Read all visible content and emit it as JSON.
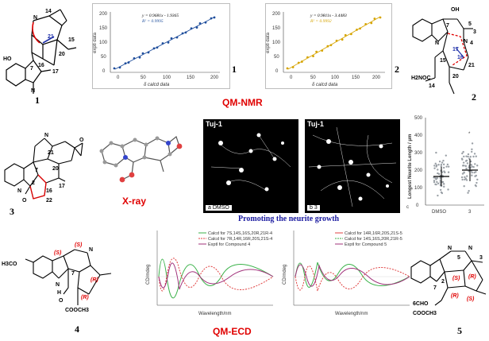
{
  "labels": {
    "qm_nmr": "QM-NMR",
    "xray": "X-ray",
    "qm_ecd": "QM-ECD",
    "promoting": "Promoting the neurite growth"
  },
  "compounds": {
    "c1": "1",
    "c2": "2",
    "c3": "3",
    "c4": "4",
    "c5": "5"
  },
  "atoms": {
    "c1": [
      "14",
      "15",
      "21",
      "20",
      "17",
      "16",
      "7",
      "HO",
      "N",
      "N"
    ],
    "c2": [
      "OH",
      "7",
      "5",
      "N",
      "N",
      "3",
      "4",
      "17",
      "16",
      "15",
      "21",
      "20",
      "14",
      "H2NOC"
    ],
    "c3": [
      "N",
      "21",
      "20",
      "17",
      "7",
      "2",
      "16",
      "22",
      "O",
      "O",
      "N"
    ],
    "c4": [
      "H3CO",
      "(S)",
      "(S)",
      "7",
      "(R)",
      "(R)",
      "N",
      "N",
      "O",
      "H",
      "COOCH3"
    ],
    "c5": [
      "N",
      "N",
      "5",
      "3",
      "7",
      "2",
      "(S)",
      "(S)",
      "(R)",
      "(R)",
      "6CHO",
      "COOCH3"
    ]
  },
  "nmr_plot_1": {
    "eq1": "y = 0.9681x - 1.9365",
    "eq2": "R² = 0.9995",
    "xlabel": "δ calcd data",
    "ylabel": "exptl data",
    "xticks": [
      "0",
      "50",
      "100",
      "150",
      "200"
    ],
    "yticks": [
      "0",
      "50",
      "100",
      "150",
      "200"
    ],
    "label": "1",
    "color": "#1f4e9c"
  },
  "nmr_plot_2": {
    "eq1": "y = 0.9811x - 3.4483",
    "eq2": "R² = 0.9992",
    "xlabel": "δ calcd data",
    "ylabel": "exptl data",
    "xticks": [
      "0",
      "50",
      "100",
      "150",
      "200"
    ],
    "yticks": [
      "0",
      "50",
      "100",
      "150",
      "200"
    ],
    "label": "2",
    "color": "#d6a400"
  },
  "micro": {
    "left_title": "Tuj-1",
    "left_foot": "a  DMSO",
    "right_title": "Tuj-1",
    "right_foot": "b  3"
  },
  "scatter": {
    "ylabel": "Longest Neurite Length / μm",
    "ymax_tick": "500",
    "yticks": [
      "0",
      "100",
      "200",
      "300",
      "400",
      "500"
    ],
    "xcats": [
      "DMSO",
      "3"
    ],
    "panel": "c",
    "star": "*"
  },
  "ecd1": {
    "legend": [
      "Calcd for 7S,14S,16S,20R,21R-4",
      "Calcd for 7R,14R,16R,20S,21S-4",
      "Exptl for Compound 4"
    ],
    "xlabel": "Wavelength/nm",
    "ylabel": "CD/mdeg"
  },
  "ecd2": {
    "legend": [
      "Calcd for 14R,16R,20S,21S-5",
      "Calcd for 14S,16S,20R,21R-5",
      "Exptl for Compound 5"
    ],
    "xlabel": "Wavelength/nm",
    "ylabel": "CD/mdeg"
  },
  "colors": {
    "red": "#e00000",
    "blue": "#2233aa",
    "green": "#3bb24a",
    "purple": "#a0307a"
  }
}
